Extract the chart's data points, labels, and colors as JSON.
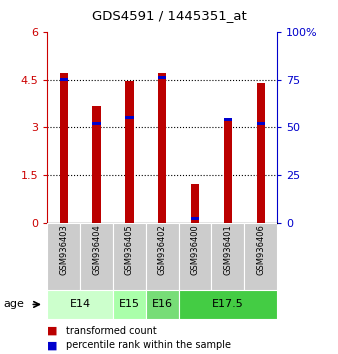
{
  "title": "GDS4591 / 1445351_at",
  "samples": [
    "GSM936403",
    "GSM936404",
    "GSM936405",
    "GSM936402",
    "GSM936400",
    "GSM936401",
    "GSM936406"
  ],
  "transformed_count": [
    4.72,
    3.68,
    4.45,
    4.72,
    1.22,
    3.25,
    4.38
  ],
  "percentile_rank": [
    76,
    53,
    56,
    77,
    3,
    55,
    53
  ],
  "red_color": "#BB0000",
  "blue_color": "#0000CC",
  "ylim_left": [
    0,
    6
  ],
  "ylim_right": [
    0,
    100
  ],
  "yticks_left": [
    0,
    1.5,
    3,
    4.5,
    6
  ],
  "yticks_right": [
    0,
    25,
    50,
    75,
    100
  ],
  "age_groups": [
    {
      "label": "E14",
      "samples": [
        0,
        1
      ],
      "color": "#CCFFCC"
    },
    {
      "label": "E15",
      "samples": [
        2
      ],
      "color": "#AAFFAA"
    },
    {
      "label": "E16",
      "samples": [
        3
      ],
      "color": "#77DD77"
    },
    {
      "label": "E17.5",
      "samples": [
        4,
        5,
        6
      ],
      "color": "#44CC44"
    }
  ],
  "tick_color_left": "#CC0000",
  "tick_color_right": "#0000CC",
  "bar_width": 0.25
}
